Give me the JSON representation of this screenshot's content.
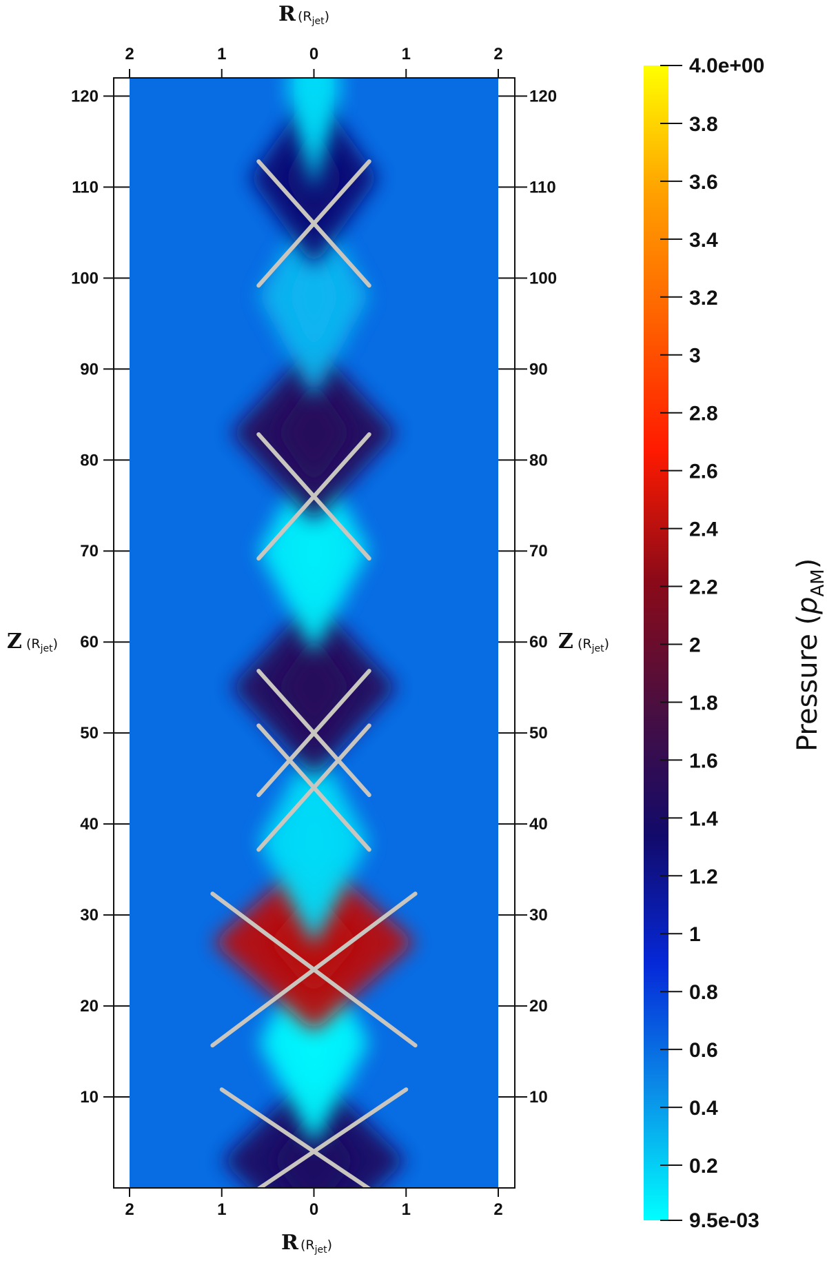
{
  "chart_data": {
    "type": "heatmap",
    "x_axis": {
      "title": "R",
      "unit": "R",
      "unit_subscript": "jet",
      "ticks": [
        2,
        1,
        0,
        1,
        2
      ],
      "tick_values": [
        -2,
        -1,
        0,
        1,
        2
      ],
      "range": [
        -2,
        2
      ]
    },
    "y_axis": {
      "title": "Z",
      "unit": "R",
      "unit_subscript": "jet",
      "ticks": [
        10,
        20,
        30,
        40,
        50,
        60,
        70,
        80,
        90,
        100,
        110,
        120
      ],
      "range": [
        0,
        122
      ]
    },
    "colorbar": {
      "label": "Pressure (",
      "label_symbol": "p",
      "label_subscript": "AM",
      "label_close": ")",
      "min_label": "9.5e-03",
      "max_label": "4.0e+00",
      "min": 0.0095,
      "max": 4.0,
      "tick_labels": [
        "0.2",
        "0.4",
        "0.6",
        "0.8",
        "1",
        "1.2",
        "1.4",
        "1.6",
        "1.8",
        "2",
        "2.2",
        "2.4",
        "2.6",
        "2.8",
        "3",
        "3.2",
        "3.4",
        "3.6",
        "3.8"
      ],
      "tick_values": [
        0.2,
        0.4,
        0.6,
        0.8,
        1.0,
        1.2,
        1.4,
        1.6,
        1.8,
        2.0,
        2.2,
        2.4,
        2.6,
        2.8,
        3.0,
        3.2,
        3.4,
        3.6,
        3.8
      ],
      "colormap": [
        "#00ffff",
        "#0a8ee8",
        "#0528d8",
        "#120a6a",
        "#4a0f40",
        "#8c0a18",
        "#ff1a00",
        "#ff6000",
        "#ffa000",
        "#ffff00"
      ]
    },
    "background_pressure": 0.6,
    "features": [
      {
        "kind": "high",
        "z_center": 3,
        "half_width_R": 1.0,
        "pressure": 1.4
      },
      {
        "kind": "low",
        "z_center": 16,
        "half_width_R": 0.6,
        "pressure": 0.05
      },
      {
        "kind": "high",
        "z_center": 27,
        "half_width_R": 1.1,
        "pressure": 2.4
      },
      {
        "kind": "low",
        "z_center": 38,
        "half_width_R": 0.6,
        "pressure": 0.15
      },
      {
        "kind": "high",
        "z_center": 55,
        "half_width_R": 0.9,
        "pressure": 1.5
      },
      {
        "kind": "low",
        "z_center": 70,
        "half_width_R": 0.6,
        "pressure": 0.08
      },
      {
        "kind": "high",
        "z_center": 83,
        "half_width_R": 0.9,
        "pressure": 1.5
      },
      {
        "kind": "low",
        "z_center": 98,
        "half_width_R": 0.6,
        "pressure": 0.3
      },
      {
        "kind": "high",
        "z_center": 111,
        "half_width_R": 0.7,
        "pressure": 1.3
      },
      {
        "kind": "low",
        "z_center": 121,
        "half_width_R": 0.3,
        "pressure": 0.15
      }
    ],
    "shocks_color": "#c9c6c0"
  }
}
